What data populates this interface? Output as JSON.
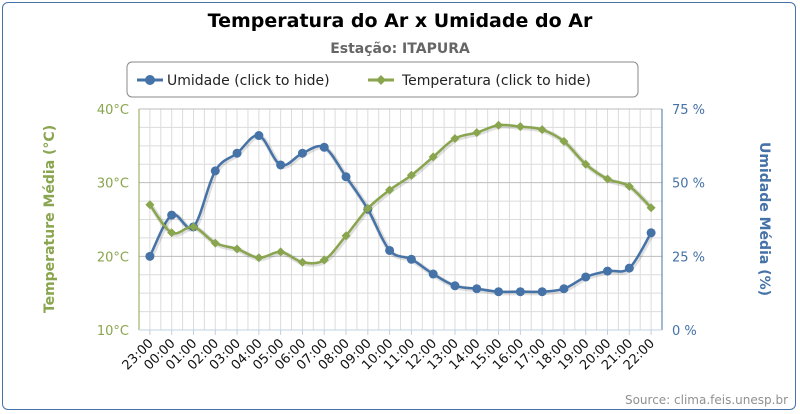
{
  "chart_data": {
    "type": "line",
    "title": "Temperatura do Ar x Umidade do Ar",
    "subtitle": "Estação: ITAPURA",
    "categories": [
      "23:00",
      "00:00",
      "01:00",
      "02:00",
      "03:00",
      "04:00",
      "05:00",
      "06:00",
      "07:00",
      "08:00",
      "09:00",
      "10:00",
      "11:00",
      "12:00",
      "13:00",
      "14:00",
      "15:00",
      "16:00",
      "17:00",
      "18:00",
      "19:00",
      "20:00",
      "21:00",
      "22:00"
    ],
    "series": [
      {
        "name": "Umidade (click to hide)",
        "axis": "right",
        "color": "#4572a7",
        "marker": "circle",
        "values": [
          25,
          39,
          35,
          54,
          60,
          66,
          56,
          60,
          62,
          52,
          41,
          27,
          24,
          19,
          15,
          14,
          13,
          13,
          13,
          14,
          18,
          20,
          21,
          33
        ]
      },
      {
        "name": "Temperatura (click to hide)",
        "axis": "left",
        "color": "#89a54e",
        "marker": "diamond",
        "values": [
          27.0,
          23.2,
          24.0,
          21.8,
          21.0,
          19.8,
          20.6,
          19.2,
          19.5,
          22.8,
          26.5,
          29.0,
          31.0,
          33.5,
          36.0,
          36.8,
          37.8,
          37.6,
          37.2,
          35.6,
          32.5,
          30.5,
          29.5,
          26.6
        ]
      }
    ],
    "y_left": {
      "label": "Temperature Média (°C)",
      "min": 10,
      "max": 40,
      "ticks": [
        "10°C",
        "20°C",
        "30°C",
        "40°C"
      ],
      "tick_values": [
        10,
        20,
        30,
        40
      ]
    },
    "y_right": {
      "label": "Umidade Média (%)",
      "min": 0,
      "max": 75,
      "ticks": [
        "0 %",
        "25 %",
        "50 %",
        "75 %"
      ],
      "tick_values": [
        0,
        25,
        50,
        75
      ]
    },
    "grid": true,
    "legend": "top-center",
    "credits": "Source: clima.feis.unesp.br"
  }
}
